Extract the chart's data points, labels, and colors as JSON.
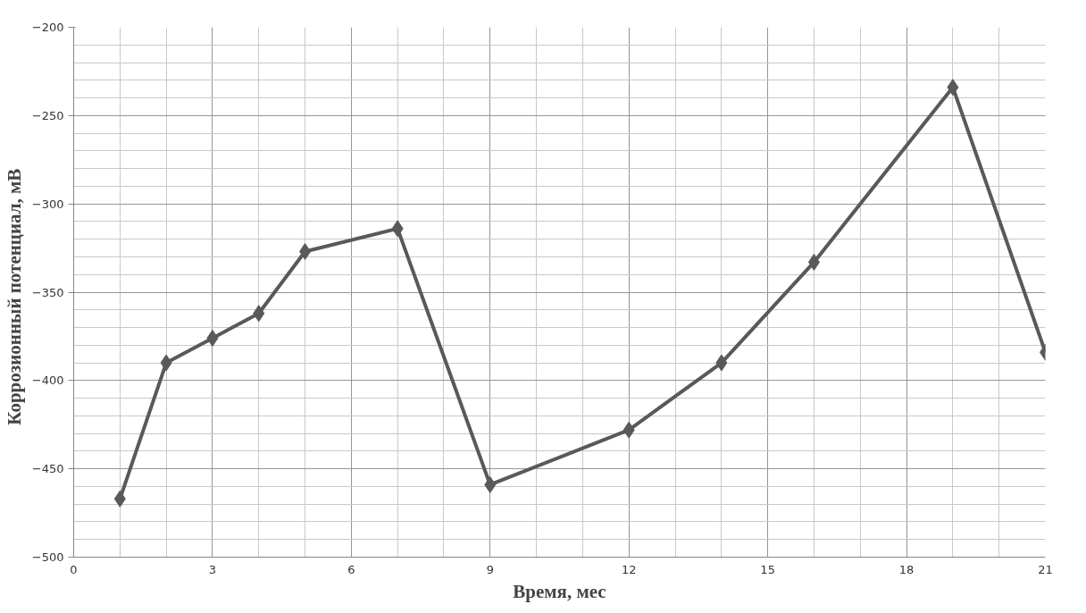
{
  "chart_data": {
    "type": "line",
    "xlabel": "Время, мес",
    "ylabel": "Коррозионный  потенциал,  мВ",
    "x": [
      1,
      2,
      3,
      4,
      5,
      7,
      9,
      12,
      14,
      16,
      19,
      21
    ],
    "series": [
      {
        "color": "#595959",
        "values": [
          -467,
          -390,
          -376,
          -362,
          -327,
          -314,
          -459,
          -428,
          -390,
          -333,
          -234,
          -384
        ]
      }
    ],
    "xlim": [
      0,
      21
    ],
    "xticks": [
      0,
      3,
      6,
      9,
      12,
      15,
      18,
      21
    ],
    "ylim": [
      -500,
      -200
    ],
    "yticks": [
      -500,
      -450,
      -400,
      -350,
      -300,
      -250,
      -200
    ],
    "grid": true,
    "marker": "diamond",
    "line_style": "solid"
  }
}
